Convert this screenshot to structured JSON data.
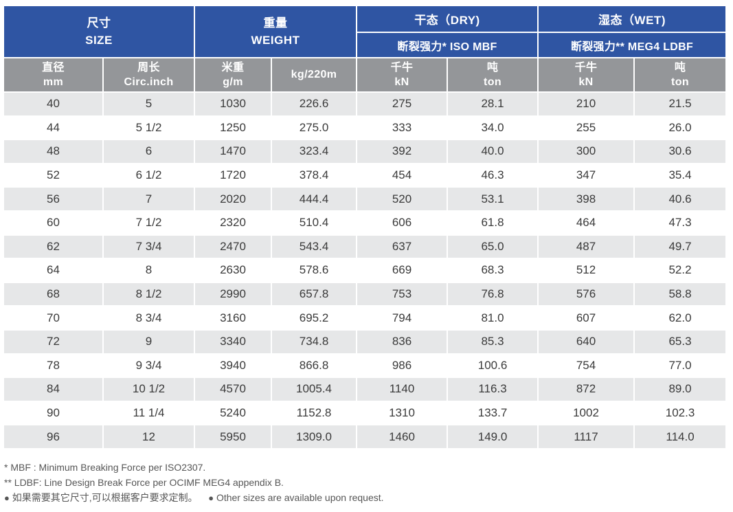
{
  "header": {
    "size_zh": "尺寸",
    "size_en": "SIZE",
    "weight_zh": "重量",
    "weight_en": "WEIGHT",
    "dry": "干态（DRY)",
    "wet": "湿态（WET)",
    "dry_sub": "断裂强力*  ISO MBF",
    "wet_sub": "断裂强力**  MEG4 LDBF"
  },
  "subheaders": [
    {
      "zh": "直径",
      "en": "mm"
    },
    {
      "zh": "周长",
      "en": "Circ.inch"
    },
    {
      "zh": "米重",
      "en": "g/m"
    },
    {
      "zh": "",
      "en": "kg/220m"
    },
    {
      "zh": "千牛",
      "en": "kN"
    },
    {
      "zh": "吨",
      "en": "ton"
    },
    {
      "zh": "千牛",
      "en": "kN"
    },
    {
      "zh": "吨",
      "en": "ton"
    }
  ],
  "rows": [
    [
      "40",
      "5",
      "1030",
      "226.6",
      "275",
      "28.1",
      "210",
      "21.5"
    ],
    [
      "44",
      "5 1/2",
      "1250",
      "275.0",
      "333",
      "34.0",
      "255",
      "26.0"
    ],
    [
      "48",
      "6",
      "1470",
      "323.4",
      "392",
      "40.0",
      "300",
      "30.6"
    ],
    [
      "52",
      "6 1/2",
      "1720",
      "378.4",
      "454",
      "46.3",
      "347",
      "35.4"
    ],
    [
      "56",
      "7",
      "2020",
      "444.4",
      "520",
      "53.1",
      "398",
      "40.6"
    ],
    [
      "60",
      "7 1/2",
      "2320",
      "510.4",
      "606",
      "61.8",
      "464",
      "47.3"
    ],
    [
      "62",
      "7 3/4",
      "2470",
      "543.4",
      "637",
      "65.0",
      "487",
      "49.7"
    ],
    [
      "64",
      "8",
      "2630",
      "578.6",
      "669",
      "68.3",
      "512",
      "52.2"
    ],
    [
      "68",
      "8 1/2",
      "2990",
      "657.8",
      "753",
      "76.8",
      "576",
      "58.8"
    ],
    [
      "70",
      "8 3/4",
      "3160",
      "695.2",
      "794",
      "81.0",
      "607",
      "62.0"
    ],
    [
      "72",
      "9",
      "3340",
      "734.8",
      "836",
      "85.3",
      "640",
      "65.3"
    ],
    [
      "78",
      "9 3/4",
      "3940",
      "866.8",
      "986",
      "100.6",
      "754",
      "77.0"
    ],
    [
      "84",
      "10 1/2",
      "4570",
      "1005.4",
      "1140",
      "116.3",
      "872",
      "89.0"
    ],
    [
      "90",
      "11 1/4",
      "5240",
      "1152.8",
      "1310",
      "133.7",
      "1002",
      "102.3"
    ],
    [
      "96",
      "12",
      "5950",
      "1309.0",
      "1460",
      "149.0",
      "1117",
      "114.0"
    ]
  ],
  "notes": {
    "mbf": "*   MBF : Minimum Breaking Force per ISO2307.",
    "ldbf": "**  LDBF: Line Design Break Force per OCIMF MEG4 appendix B.",
    "custom_zh": "如果需要其它尺寸,可以根据客户要求定制。",
    "custom_en": "Other sizes are available upon request."
  },
  "colors": {
    "header_blue": "#2f55a3",
    "header_gray": "#949699",
    "row_stripe": "#e6e7e8"
  }
}
